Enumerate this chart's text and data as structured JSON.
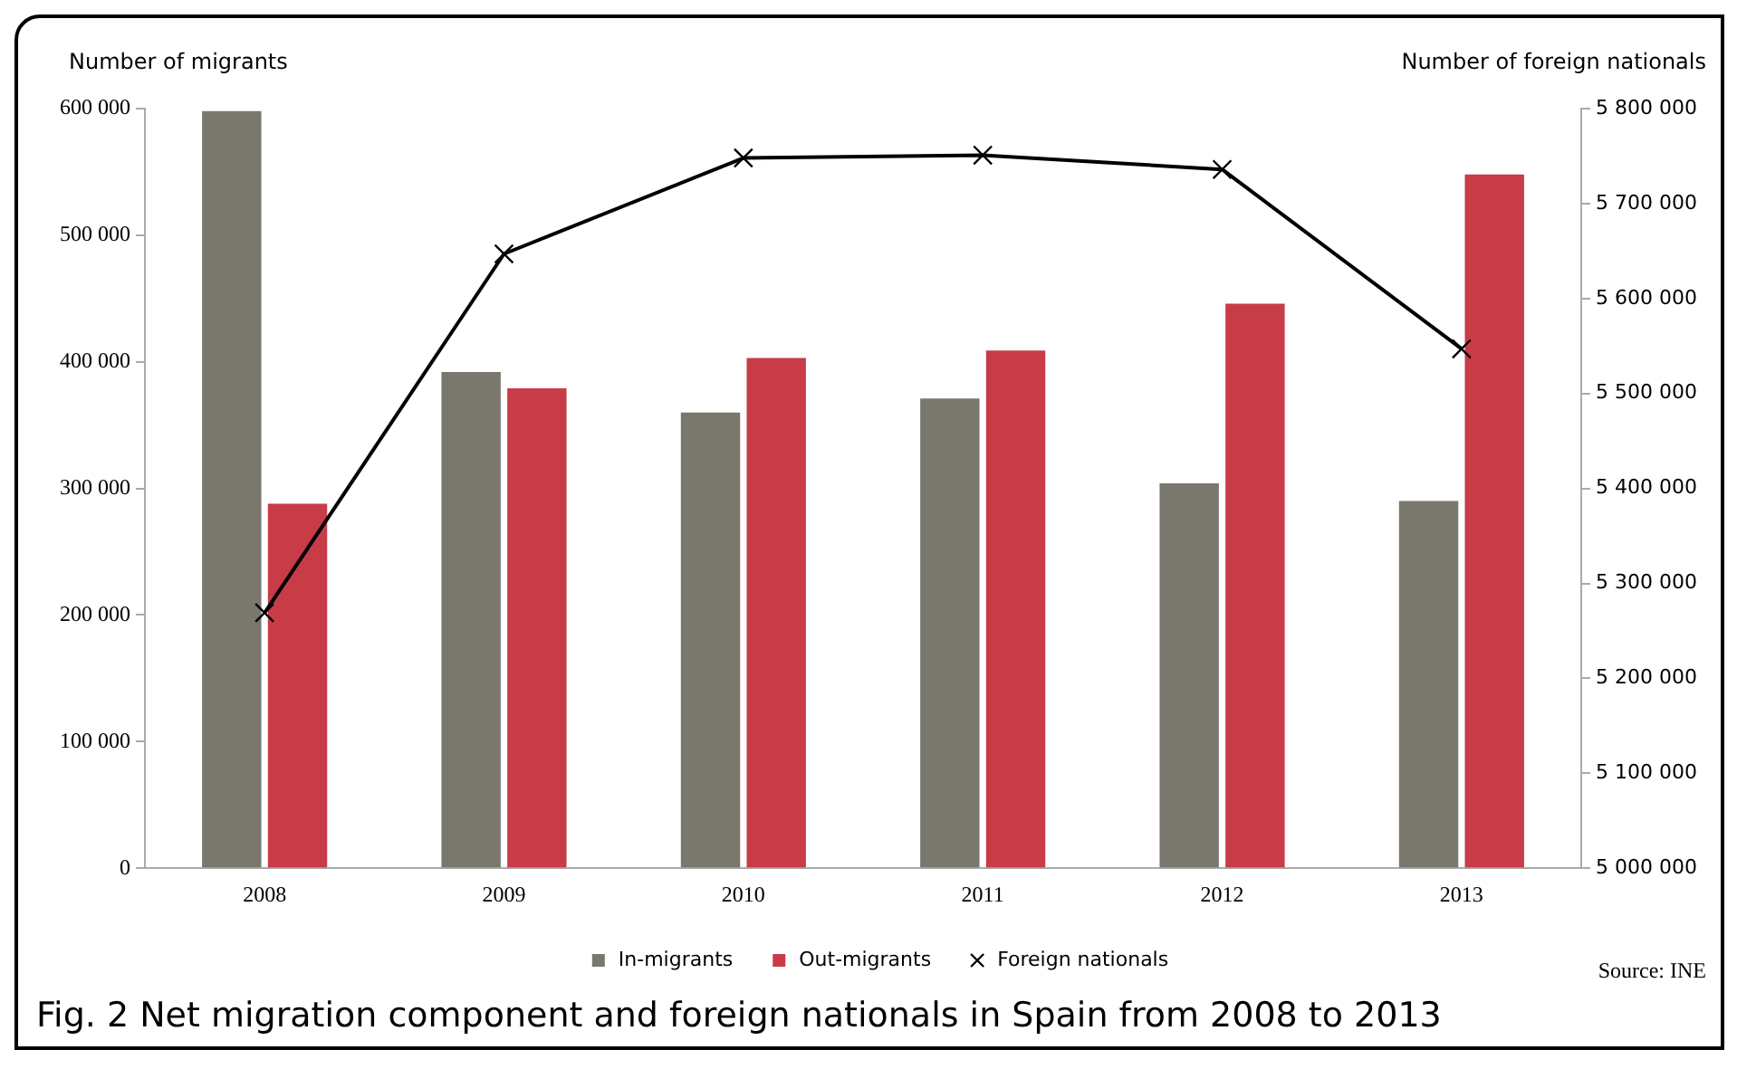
{
  "chart_data": {
    "type": "bar",
    "title": "Fig. 2 Net migration component and foreign nationals in Spain from 2008 to 2013",
    "ylabel": "Number of migrants",
    "y2label": "Number of foreign nationals",
    "annotations": [
      "Source: INE"
    ],
    "categories": [
      "2008",
      "2009",
      "2010",
      "2011",
      "2012",
      "2013"
    ],
    "series": [
      {
        "name": "In-migrants",
        "color": "#7a776d",
        "values": [
          598000,
          392000,
          360000,
          371000,
          304000,
          290000
        ]
      },
      {
        "name": "Out-migrants",
        "color": "#c83c48",
        "values": [
          288000,
          379000,
          403000,
          409000,
          446000,
          548000
        ]
      },
      {
        "name": "Foreign nationals",
        "type": "line",
        "axis": "y2",
        "color": "#000000",
        "marker": "cross",
        "values": [
          5269000,
          5647000,
          5748000,
          5751000,
          5736000,
          5547000
        ]
      }
    ],
    "ylim": [
      0,
      600000
    ],
    "yticks": [
      0,
      {
        "value": 100000,
        "label": "100 000"
      },
      {
        "value": 200000,
        "label": "200 000"
      },
      {
        "value": 300000,
        "label": "300 000"
      },
      {
        "value": 400000,
        "label": "400 000"
      },
      {
        "value": 500000,
        "label": "500 000"
      },
      {
        "value": 600000,
        "label": "600 000"
      }
    ],
    "y2lim": [
      5000000,
      5800000
    ],
    "y2ticks": [
      {
        "value": 5000000,
        "label": "5 000 000"
      },
      {
        "value": 5100000,
        "label": "5 100 000"
      },
      {
        "value": 5200000,
        "label": "5 200 000"
      },
      {
        "value": 5300000,
        "label": "5 300 000"
      },
      {
        "value": 5400000,
        "label": "5 400 000"
      },
      {
        "value": 5500000,
        "label": "5 500 000"
      },
      {
        "value": 5600000,
        "label": "5 600 000"
      },
      {
        "value": 5700000,
        "label": "5 700 000"
      },
      {
        "value": 5800000,
        "label": "5 800 000"
      }
    ],
    "grid": false,
    "legend": "bottom"
  }
}
